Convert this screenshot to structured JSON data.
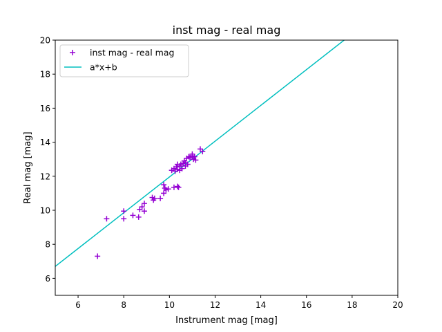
{
  "chart_data": {
    "type": "scatter",
    "title": "inst mag - real mag",
    "xlabel": "Instrument mag [mag]",
    "ylabel": "Real mag [mag]",
    "xlim": [
      5,
      20
    ],
    "ylim": [
      5,
      20
    ],
    "xticks": [
      6,
      8,
      10,
      12,
      14,
      16,
      18,
      20
    ],
    "yticks": [
      6,
      8,
      10,
      12,
      14,
      16,
      18,
      20
    ],
    "grid": false,
    "legend_position": "top-left",
    "series": [
      {
        "name": "inst mag - real mag",
        "type": "scatter",
        "marker": "+",
        "color": "#9400d3",
        "points": [
          [
            6.85,
            7.3
          ],
          [
            7.25,
            9.5
          ],
          [
            8.0,
            9.5
          ],
          [
            8.0,
            9.95
          ],
          [
            8.4,
            9.7
          ],
          [
            8.65,
            9.6
          ],
          [
            8.7,
            10.05
          ],
          [
            8.8,
            10.2
          ],
          [
            8.9,
            10.4
          ],
          [
            8.9,
            9.95
          ],
          [
            9.25,
            10.75
          ],
          [
            9.3,
            10.6
          ],
          [
            9.35,
            10.7
          ],
          [
            9.6,
            10.7
          ],
          [
            9.75,
            11.0
          ],
          [
            9.75,
            11.5
          ],
          [
            9.8,
            11.3
          ],
          [
            9.85,
            11.2
          ],
          [
            9.95,
            11.25
          ],
          [
            10.2,
            11.35
          ],
          [
            10.35,
            11.4
          ],
          [
            10.4,
            11.35
          ],
          [
            10.1,
            12.35
          ],
          [
            10.2,
            12.45
          ],
          [
            10.25,
            12.3
          ],
          [
            10.3,
            12.55
          ],
          [
            10.35,
            12.4
          ],
          [
            10.35,
            12.7
          ],
          [
            10.45,
            12.6
          ],
          [
            10.45,
            12.35
          ],
          [
            10.5,
            12.7
          ],
          [
            10.55,
            12.45
          ],
          [
            10.6,
            12.75
          ],
          [
            10.65,
            12.9
          ],
          [
            10.7,
            12.8
          ],
          [
            10.7,
            12.6
          ],
          [
            10.75,
            13.05
          ],
          [
            10.8,
            12.7
          ],
          [
            10.85,
            13.15
          ],
          [
            10.9,
            13.1
          ],
          [
            11.0,
            13.2
          ],
          [
            11.0,
            13.3
          ],
          [
            11.05,
            13.0
          ],
          [
            11.1,
            13.15
          ],
          [
            11.15,
            12.95
          ],
          [
            11.35,
            13.6
          ],
          [
            11.45,
            13.45
          ]
        ]
      },
      {
        "name": "a*x+b",
        "type": "line",
        "color": "#00bfbf",
        "x": [
          5,
          17.65
        ],
        "y": [
          6.7,
          20
        ]
      }
    ]
  }
}
